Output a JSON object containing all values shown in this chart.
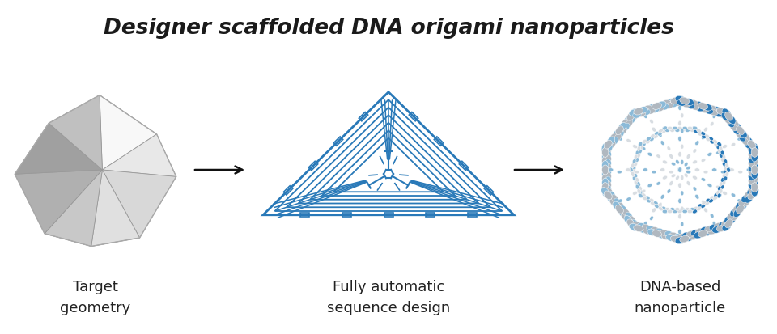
{
  "title": "Designer scaffolded DNA origami nanoparticles",
  "title_fontsize": 19,
  "title_style": "italic",
  "title_weight": "bold",
  "title_color": "#1a1a1a",
  "background_color": "#ffffff",
  "label1": "Target\ngeometry",
  "label2": "Fully automatic\nsequence design",
  "label3": "DNA-based\nnanoparticle",
  "label_fontsize": 13,
  "label_color": "#222222",
  "arrow_color": "#111111",
  "dna_blue": "#2979b8",
  "dna_light_blue": "#8bbad8",
  "dna_gray": "#b0b8c0",
  "dna_white_gray": "#d8dde2",
  "poly_f0": "#f8f8f8",
  "poly_f1": "#f0f0f0",
  "poly_f2": "#e2e2e2",
  "poly_f3": "#d0d0d0",
  "poly_f4": "#c0c0c0",
  "poly_f5": "#b0b0b0",
  "poly_f6": "#a0a0a0",
  "poly_f7": "#909090",
  "poly_edge": "#999999"
}
